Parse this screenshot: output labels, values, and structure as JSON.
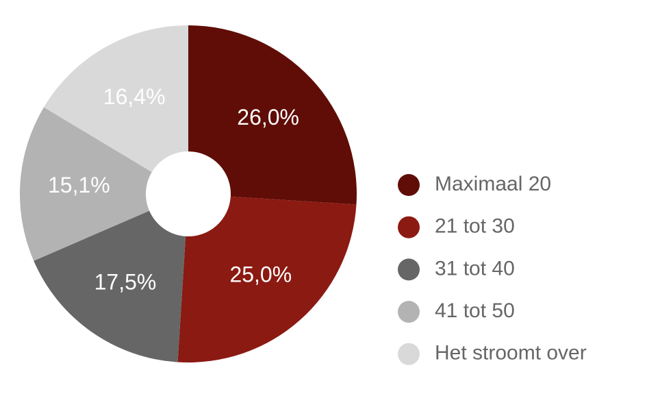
{
  "chart_data": {
    "type": "donut",
    "categories": [
      "Maximaal 20",
      "21 tot 30",
      "31 tot 40",
      "41 tot 50",
      "Het stroomt over"
    ],
    "values": [
      26.0,
      25.0,
      17.5,
      15.1,
      16.4
    ],
    "value_labels": [
      "26,0%",
      "25,0%",
      "17,5%",
      "15,1%",
      "16,4%"
    ],
    "colors": [
      "#5f0d06",
      "#8b1a12",
      "#666666",
      "#b3b3b3",
      "#d9d9d9"
    ],
    "legend": "right"
  }
}
